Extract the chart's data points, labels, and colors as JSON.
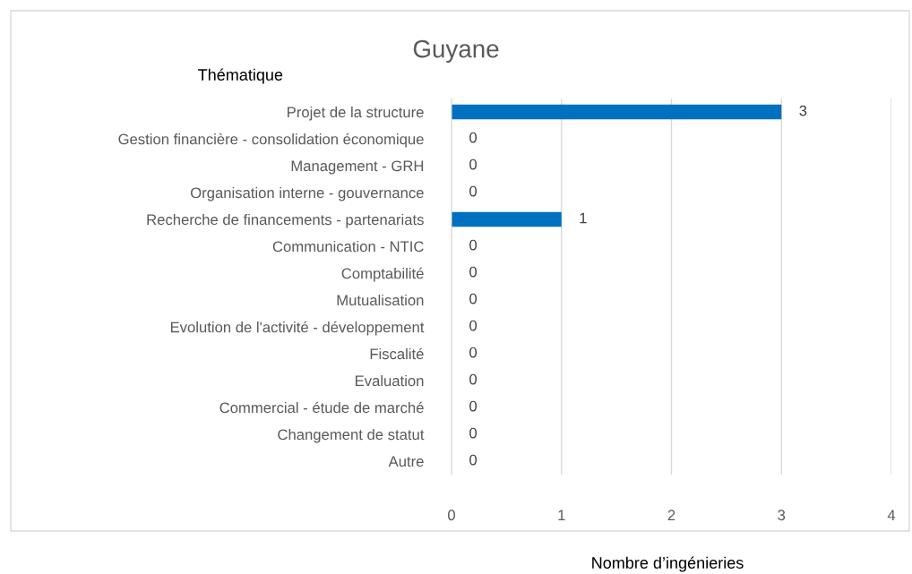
{
  "chart_data": {
    "type": "bar",
    "orientation": "horizontal",
    "title": "Guyane",
    "xlabel": "Nombre d’ingénieries",
    "ylabel": "Thématique",
    "categories": [
      "Projet de la structure",
      "Gestion financière - consolidation économique",
      "Management - GRH",
      "Organisation interne - gouvernance",
      "Recherche de financements - partenariats",
      "Communication - NTIC",
      "Comptabilité",
      "Mutualisation",
      "Evolution de l'activité - développement",
      "Fiscalité",
      "Evaluation",
      "Commercial - étude de marché",
      "Changement de statut",
      "Autre"
    ],
    "values": [
      3,
      0,
      0,
      0,
      1,
      0,
      0,
      0,
      0,
      0,
      0,
      0,
      0,
      0
    ],
    "color": "#0070c0",
    "xlim": [
      0,
      4
    ],
    "xticks": [
      0,
      1,
      2,
      3,
      4
    ],
    "grid": "x",
    "data_labels": true
  }
}
